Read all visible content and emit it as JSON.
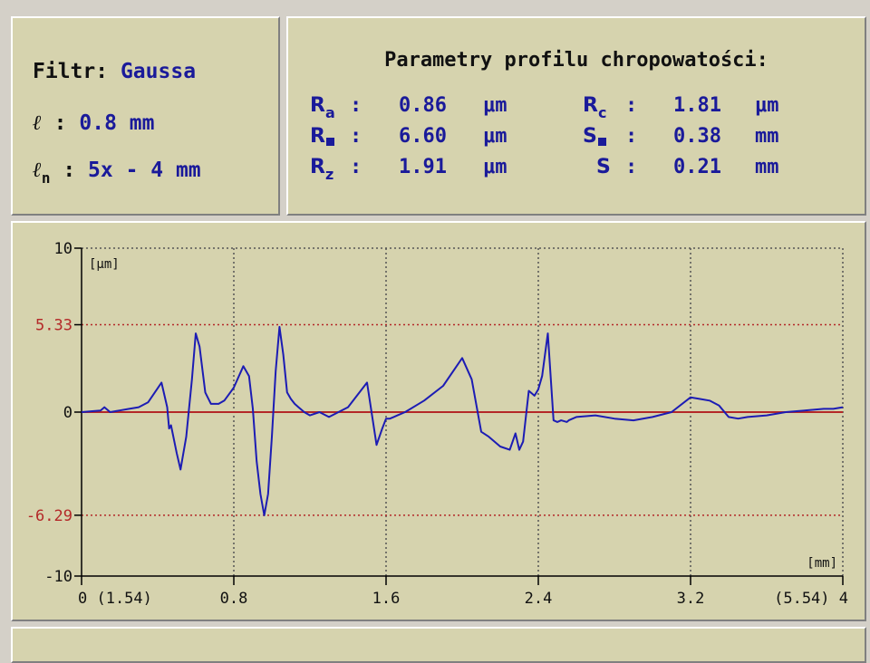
{
  "filter": {
    "label": "Filtr:",
    "type": "Gaussa",
    "cutoff_symbol": "ℓ",
    "cutoff_sep": " :",
    "cutoff_value": "0.8 mm",
    "eval_symbol": "ℓ",
    "eval_sub": "n",
    "eval_sep": " :",
    "eval_value": "5x - 4 mm"
  },
  "params": {
    "title": "Parametry profilu chropowatości:",
    "left": [
      {
        "sym": "R",
        "sub": "a",
        "sep": ":",
        "value": "0.86",
        "unit": "μm"
      },
      {
        "sym": "R",
        "sub": "",
        "sep": ":",
        "value": "6.60",
        "unit": "μm"
      },
      {
        "sym": "R",
        "sub": "z",
        "sep": ":",
        "value": "1.91",
        "unit": "μm"
      }
    ],
    "right": [
      {
        "sym": "R",
        "sub": "c",
        "sep": ":",
        "value": "1.81",
        "unit": "μm"
      },
      {
        "sym": "S",
        "sub": "",
        "sep": ":",
        "value": "0.38",
        "unit": "mm"
      },
      {
        "sym": "S",
        "sub": "",
        "sep": ":",
        "value": "0.21",
        "unit": "mm"
      }
    ]
  },
  "chart_data": {
    "type": "line",
    "ylabel": "[μm]",
    "xlabel": "[mm]",
    "xlim": [
      0,
      4
    ],
    "ylim": [
      -10,
      10
    ],
    "x_ticks": [
      {
        "v": 0,
        "label": "0 (1.54)"
      },
      {
        "v": 0.8,
        "label": "0.8"
      },
      {
        "v": 1.6,
        "label": "1.6"
      },
      {
        "v": 2.4,
        "label": "2.4"
      },
      {
        "v": 3.2,
        "label": "3.2"
      },
      {
        "v": 4,
        "label": "(5.54) 4"
      }
    ],
    "y_ticks": [
      {
        "v": 10,
        "label": "10"
      },
      {
        "v": 5.33,
        "label": "5.33"
      },
      {
        "v": 0,
        "label": "0"
      },
      {
        "v": -6.29,
        "label": "-6.29"
      },
      {
        "v": -10,
        "label": "-10"
      }
    ],
    "reference_lines": [
      5.33,
      -6.29
    ],
    "grid": true,
    "colors": {
      "profile": "#1c1cb4",
      "mean_line": "#b42828",
      "limits": "#b42828",
      "grid": "#555555",
      "tick_red": "#b42828"
    },
    "series": [
      {
        "x": [
          0,
          0.1,
          0.12,
          0.15,
          0.2,
          0.25,
          0.3,
          0.35,
          0.42,
          0.45,
          0.46,
          0.47,
          0.5,
          0.52,
          0.55,
          0.58,
          0.6,
          0.62,
          0.65,
          0.68,
          0.7,
          0.72,
          0.75,
          0.8,
          0.85,
          0.88,
          0.9,
          0.92,
          0.94,
          0.96,
          0.98,
          1.0,
          1.02,
          1.04,
          1.06,
          1.08,
          1.1,
          1.12,
          1.14,
          1.15,
          1.17,
          1.2,
          1.25,
          1.3,
          1.4,
          1.5,
          1.55,
          1.58,
          1.6,
          1.62,
          1.64,
          1.66,
          1.7,
          1.8,
          1.9,
          2.0,
          2.05,
          2.1,
          2.14,
          2.2,
          2.25,
          2.28,
          2.3,
          2.32,
          2.35,
          2.38,
          2.4,
          2.42,
          2.45,
          2.48,
          2.5,
          2.52,
          2.55,
          2.56,
          2.6,
          2.7,
          2.8,
          2.9,
          3.0,
          3.1,
          3.2,
          3.25,
          3.3,
          3.35,
          3.4,
          3.45,
          3.5,
          3.6,
          3.7,
          3.8,
          3.9,
          3.95,
          4.0
        ],
        "y": [
          0,
          0.1,
          0.3,
          0,
          0.1,
          0.2,
          0.3,
          0.6,
          1.8,
          0.3,
          -1.0,
          -0.8,
          -2.5,
          -3.5,
          -1.5,
          2.0,
          4.8,
          4.0,
          1.2,
          0.5,
          0.5,
          0.5,
          0.7,
          1.5,
          2.8,
          2.2,
          0.2,
          -3.0,
          -5.0,
          -6.3,
          -5.0,
          -1.5,
          2.5,
          5.2,
          3.5,
          1.2,
          0.8,
          0.5,
          0.3,
          0.2,
          0,
          -0.2,
          0,
          -0.3,
          0.3,
          1.8,
          -2.0,
          -1.0,
          -0.4,
          -0.4,
          -0.3,
          -0.2,
          0,
          0.7,
          1.6,
          3.3,
          2.0,
          -1.2,
          -1.5,
          -2.1,
          -2.3,
          -1.3,
          -2.3,
          -1.8,
          1.3,
          1.0,
          1.4,
          2.2,
          4.8,
          -0.5,
          -0.6,
          -0.5,
          -0.6,
          -0.5,
          -0.3,
          -0.2,
          -0.4,
          -0.5,
          -0.3,
          0,
          0.9,
          0.8,
          0.7,
          0.4,
          -0.3,
          -0.4,
          -0.3,
          -0.2,
          0,
          0.1,
          0.2,
          0.2,
          0.3
        ]
      }
    ]
  }
}
